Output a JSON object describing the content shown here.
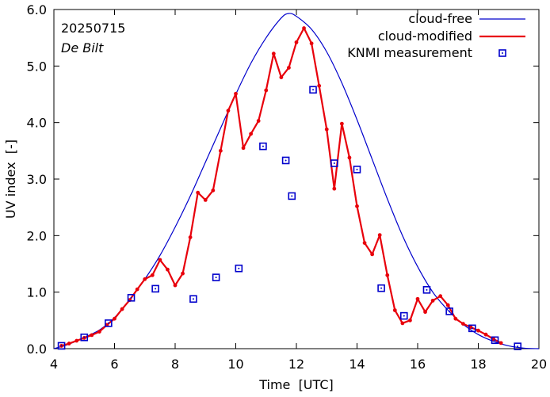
{
  "chart_data": {
    "type": "line",
    "annotations": {
      "date": "20250715",
      "location": "De Bilt"
    },
    "xlabel": "Time  [UTC]",
    "ylabel": "UV index  [-]",
    "xlim": [
      4,
      20
    ],
    "ylim": [
      0,
      6
    ],
    "xticks": [
      4,
      6,
      8,
      10,
      12,
      14,
      16,
      18,
      20
    ],
    "xtick_labels": [
      "4",
      "6",
      "8",
      "10",
      "12",
      "14",
      "16",
      "18",
      "20"
    ],
    "yticks": [
      0,
      1,
      2,
      3,
      4,
      5,
      6
    ],
    "ytick_labels": [
      "0.0",
      "1.0",
      "2.0",
      "3.0",
      "4.0",
      "5.0",
      "6.0"
    ],
    "legend_position": "top-right",
    "colors": {
      "cloud_free": "#0000cc",
      "cloud_modified": "#e8000b",
      "measurement": "#0000cc"
    },
    "series": [
      {
        "name": "cloud-free",
        "style": "line",
        "peak_time": 11.75,
        "peak_value": 5.93,
        "x": [
          4.0,
          4.5,
          5.0,
          5.5,
          6.0,
          6.5,
          7.0,
          7.5,
          8.0,
          8.5,
          9.0,
          9.5,
          10.0,
          10.5,
          11.0,
          11.5,
          11.75,
          12.0,
          12.5,
          13.0,
          13.5,
          14.0,
          14.5,
          15.0,
          15.5,
          16.0,
          16.5,
          17.0,
          17.5,
          18.0,
          18.5,
          19.0,
          19.5,
          20.0
        ],
        "y": [
          0.0,
          0.08,
          0.2,
          0.33,
          0.55,
          0.87,
          1.23,
          1.65,
          2.15,
          2.7,
          3.3,
          3.9,
          4.5,
          5.05,
          5.5,
          5.85,
          5.93,
          5.88,
          5.65,
          5.25,
          4.7,
          4.05,
          3.35,
          2.65,
          2.0,
          1.45,
          1.0,
          0.68,
          0.43,
          0.25,
          0.13,
          0.05,
          0.01,
          0.0
        ]
      },
      {
        "name": "cloud-modified",
        "style": "line-with-points",
        "x": [
          4.25,
          4.5,
          4.75,
          5.0,
          5.25,
          5.5,
          5.75,
          6.0,
          6.25,
          6.5,
          6.75,
          7.0,
          7.25,
          7.5,
          7.75,
          8.0,
          8.25,
          8.5,
          8.75,
          9.0,
          9.25,
          9.5,
          9.75,
          10.0,
          10.25,
          10.5,
          10.75,
          11.0,
          11.25,
          11.5,
          11.75,
          12.0,
          12.25,
          12.5,
          12.75,
          13.0,
          13.25,
          13.5,
          13.75,
          14.0,
          14.25,
          14.5,
          14.75,
          15.0,
          15.25,
          15.5,
          15.75,
          16.0,
          16.25,
          16.5,
          16.75,
          17.0,
          17.25,
          17.5,
          17.75,
          18.0,
          18.25,
          18.5,
          18.75
        ],
        "y": [
          0.05,
          0.09,
          0.14,
          0.19,
          0.24,
          0.3,
          0.42,
          0.53,
          0.7,
          0.86,
          1.05,
          1.23,
          1.3,
          1.57,
          1.4,
          1.12,
          1.33,
          1.97,
          2.76,
          2.63,
          2.8,
          3.5,
          4.21,
          4.51,
          3.55,
          3.8,
          4.03,
          4.57,
          5.22,
          4.8,
          4.97,
          5.42,
          5.67,
          5.4,
          4.65,
          3.88,
          2.83,
          3.98,
          3.38,
          2.52,
          1.87,
          1.67,
          2.01,
          1.3,
          0.68,
          0.45,
          0.5,
          0.88,
          0.65,
          0.85,
          0.93,
          0.77,
          0.53,
          0.44,
          0.38,
          0.32,
          0.25,
          0.17,
          0.1
        ]
      },
      {
        "name": "KNMI measurement",
        "style": "markers",
        "x": [
          4.25,
          5.0,
          5.8,
          6.55,
          7.35,
          8.6,
          9.35,
          10.1,
          10.9,
          11.65,
          11.85,
          12.55,
          13.25,
          14.0,
          14.8,
          15.55,
          16.3,
          17.05,
          17.8,
          18.55,
          19.3
        ],
        "y": [
          0.05,
          0.2,
          0.45,
          0.9,
          1.06,
          0.88,
          1.26,
          1.42,
          3.58,
          3.33,
          2.7,
          4.58,
          3.28,
          3.17,
          1.07,
          0.58,
          1.04,
          0.66,
          0.36,
          0.15,
          0.04
        ]
      }
    ]
  }
}
